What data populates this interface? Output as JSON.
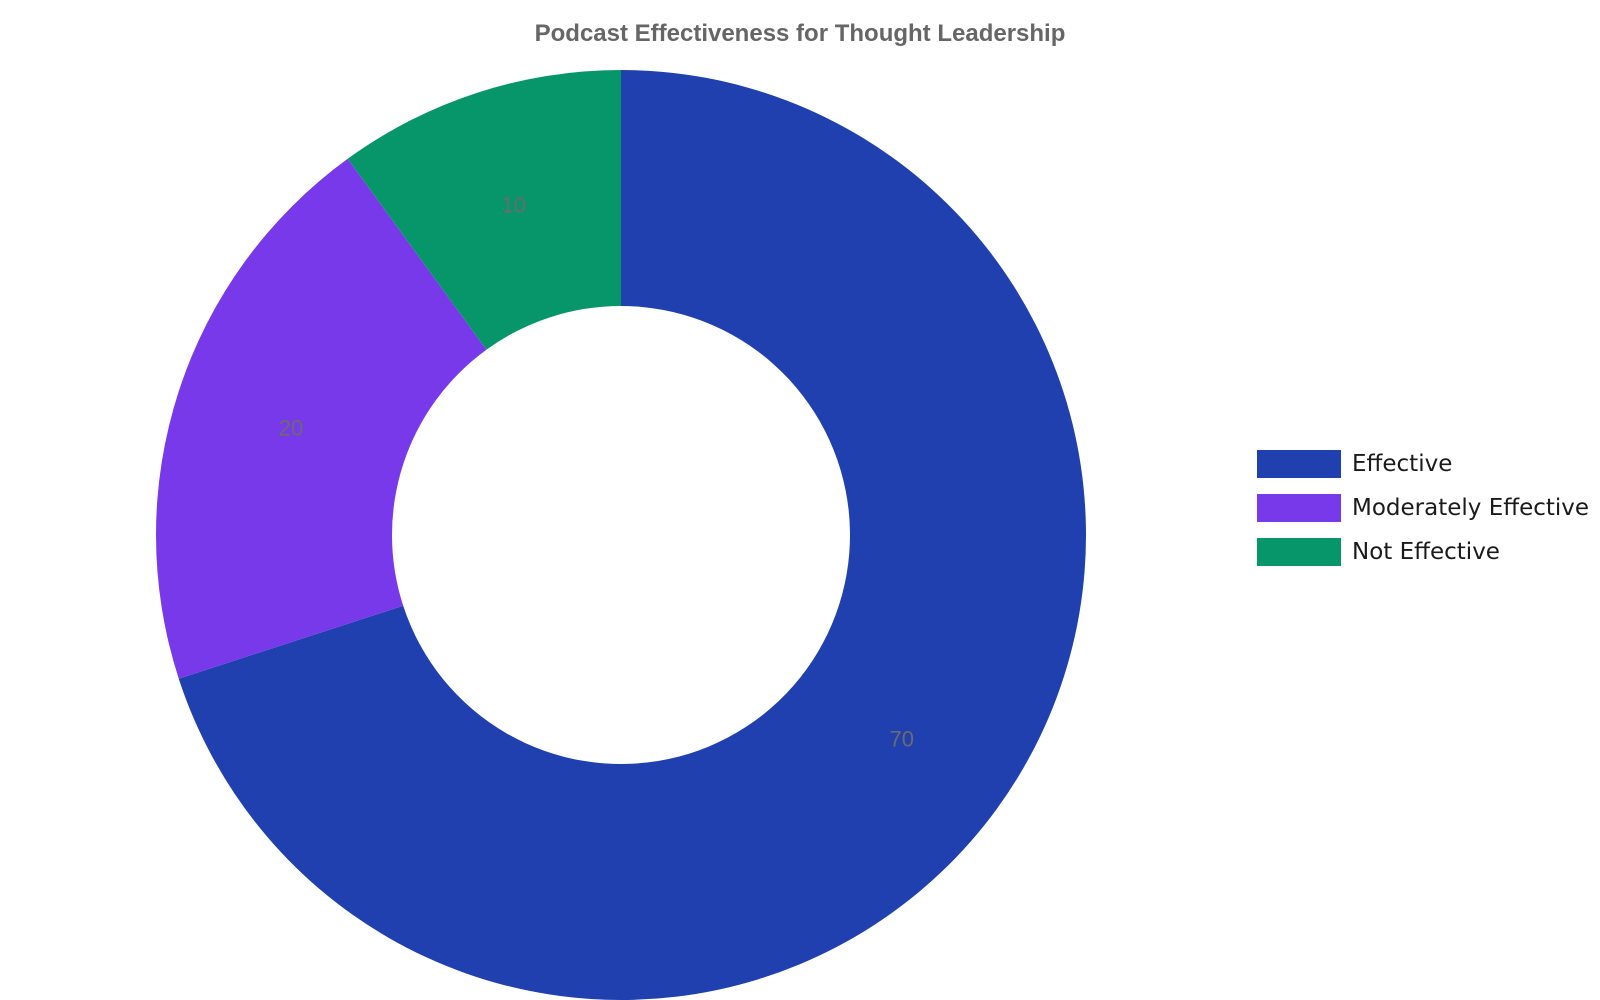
{
  "chart_data": {
    "type": "pie",
    "title": "Podcast Effectiveness for Thought Leadership",
    "categories": [
      "Effective",
      "Moderately Effective",
      "Not Effective"
    ],
    "values": [
      70,
      20,
      10
    ],
    "colors": [
      "#1f40ae",
      "#7839eb",
      "#06966a"
    ],
    "donut": true,
    "legend_position": "right"
  }
}
